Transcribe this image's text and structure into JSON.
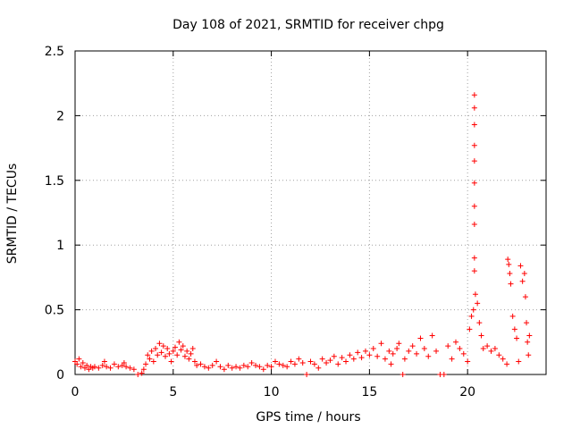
{
  "chart_data": {
    "type": "scatter",
    "title": "Day 108 of 2021, SRMTID for receiver chpg",
    "xlabel": "GPS time / hours",
    "ylabel": "SRMTID / TECUs",
    "xlim": [
      0,
      24
    ],
    "ylim": [
      0,
      2.5
    ],
    "xticks": [
      0,
      5,
      10,
      15,
      20
    ],
    "yticks": [
      0,
      0.5,
      1,
      1.5,
      2,
      2.5
    ],
    "xtick_labels": [
      "0",
      "5",
      "10",
      "15",
      "20"
    ],
    "ytick_labels": [
      "0",
      "0.5",
      "1",
      "1.5",
      "2",
      "2.5"
    ],
    "grid": true,
    "marker": "+",
    "series": [
      {
        "name": "SRMTID chpg",
        "color": "#ff0000",
        "points": [
          [
            0.0,
            0.1
          ],
          [
            0.1,
            0.08
          ],
          [
            0.2,
            0.12
          ],
          [
            0.3,
            0.06
          ],
          [
            0.4,
            0.09
          ],
          [
            0.5,
            0.05
          ],
          [
            0.6,
            0.07
          ],
          [
            0.7,
            0.04
          ],
          [
            0.8,
            0.06
          ],
          [
            0.9,
            0.05
          ],
          [
            1.0,
            0.06
          ],
          [
            1.2,
            0.05
          ],
          [
            1.4,
            0.07
          ],
          [
            1.5,
            0.1
          ],
          [
            1.6,
            0.06
          ],
          [
            1.8,
            0.05
          ],
          [
            2.0,
            0.08
          ],
          [
            2.2,
            0.06
          ],
          [
            2.4,
            0.07
          ],
          [
            2.5,
            0.09
          ],
          [
            2.6,
            0.06
          ],
          [
            2.8,
            0.05
          ],
          [
            3.0,
            0.04
          ],
          [
            3.2,
            0.0
          ],
          [
            3.4,
            0.01
          ],
          [
            3.5,
            0.04
          ],
          [
            3.6,
            0.08
          ],
          [
            3.7,
            0.15
          ],
          [
            3.8,
            0.12
          ],
          [
            3.9,
            0.18
          ],
          [
            4.0,
            0.1
          ],
          [
            4.1,
            0.2
          ],
          [
            4.2,
            0.15
          ],
          [
            4.3,
            0.24
          ],
          [
            4.4,
            0.17
          ],
          [
            4.5,
            0.22
          ],
          [
            4.6,
            0.14
          ],
          [
            4.7,
            0.2
          ],
          [
            4.8,
            0.16
          ],
          [
            4.9,
            0.1
          ],
          [
            5.0,
            0.18
          ],
          [
            5.1,
            0.21
          ],
          [
            5.2,
            0.15
          ],
          [
            5.3,
            0.25
          ],
          [
            5.4,
            0.19
          ],
          [
            5.5,
            0.22
          ],
          [
            5.6,
            0.14
          ],
          [
            5.7,
            0.18
          ],
          [
            5.8,
            0.12
          ],
          [
            5.9,
            0.16
          ],
          [
            6.0,
            0.2
          ],
          [
            6.1,
            0.1
          ],
          [
            6.2,
            0.07
          ],
          [
            6.4,
            0.08
          ],
          [
            6.6,
            0.06
          ],
          [
            6.8,
            0.05
          ],
          [
            7.0,
            0.07
          ],
          [
            7.2,
            0.1
          ],
          [
            7.4,
            0.06
          ],
          [
            7.6,
            0.04
          ],
          [
            7.8,
            0.07
          ],
          [
            8.0,
            0.05
          ],
          [
            8.2,
            0.06
          ],
          [
            8.4,
            0.05
          ],
          [
            8.6,
            0.07
          ],
          [
            8.8,
            0.06
          ],
          [
            9.0,
            0.09
          ],
          [
            9.2,
            0.07
          ],
          [
            9.4,
            0.06
          ],
          [
            9.6,
            0.04
          ],
          [
            9.8,
            0.07
          ],
          [
            10.0,
            0.06
          ],
          [
            10.2,
            0.1
          ],
          [
            10.4,
            0.08
          ],
          [
            10.6,
            0.07
          ],
          [
            10.8,
            0.06
          ],
          [
            11.0,
            0.1
          ],
          [
            11.2,
            0.08
          ],
          [
            11.4,
            0.12
          ],
          [
            11.6,
            0.09
          ],
          [
            11.8,
            0.0
          ],
          [
            12.0,
            0.1
          ],
          [
            12.2,
            0.08
          ],
          [
            12.4,
            0.05
          ],
          [
            12.6,
            0.12
          ],
          [
            12.8,
            0.09
          ],
          [
            13.0,
            0.11
          ],
          [
            13.2,
            0.14
          ],
          [
            13.4,
            0.08
          ],
          [
            13.6,
            0.13
          ],
          [
            13.8,
            0.1
          ],
          [
            14.0,
            0.15
          ],
          [
            14.2,
            0.12
          ],
          [
            14.4,
            0.17
          ],
          [
            14.6,
            0.13
          ],
          [
            14.8,
            0.18
          ],
          [
            15.0,
            0.15
          ],
          [
            15.2,
            0.2
          ],
          [
            15.4,
            0.14
          ],
          [
            15.6,
            0.24
          ],
          [
            15.8,
            0.12
          ],
          [
            16.0,
            0.18
          ],
          [
            16.1,
            0.08
          ],
          [
            16.2,
            0.16
          ],
          [
            16.4,
            0.2
          ],
          [
            16.5,
            0.24
          ],
          [
            16.7,
            0.0
          ],
          [
            16.8,
            0.12
          ],
          [
            17.0,
            0.18
          ],
          [
            17.2,
            0.22
          ],
          [
            17.4,
            0.16
          ],
          [
            17.6,
            0.28
          ],
          [
            17.8,
            0.2
          ],
          [
            18.0,
            0.14
          ],
          [
            18.2,
            0.3
          ],
          [
            18.4,
            0.18
          ],
          [
            18.6,
            0.0
          ],
          [
            18.8,
            0.0
          ],
          [
            19.0,
            0.22
          ],
          [
            19.2,
            0.12
          ],
          [
            19.4,
            0.25
          ],
          [
            19.6,
            0.2
          ],
          [
            19.8,
            0.16
          ],
          [
            20.0,
            0.1
          ],
          [
            20.1,
            0.35
          ],
          [
            20.2,
            0.45
          ],
          [
            20.3,
            0.5
          ],
          [
            20.35,
            0.8
          ],
          [
            20.35,
            0.9
          ],
          [
            20.35,
            1.16
          ],
          [
            20.35,
            1.3
          ],
          [
            20.35,
            1.48
          ],
          [
            20.35,
            1.65
          ],
          [
            20.35,
            1.77
          ],
          [
            20.35,
            1.93
          ],
          [
            20.35,
            2.06
          ],
          [
            20.35,
            2.16
          ],
          [
            20.4,
            0.62
          ],
          [
            20.5,
            0.55
          ],
          [
            20.6,
            0.4
          ],
          [
            20.7,
            0.3
          ],
          [
            20.8,
            0.2
          ],
          [
            21.0,
            0.22
          ],
          [
            21.2,
            0.18
          ],
          [
            21.4,
            0.2
          ],
          [
            21.6,
            0.15
          ],
          [
            21.8,
            0.12
          ],
          [
            22.0,
            0.08
          ],
          [
            22.05,
            0.89
          ],
          [
            22.1,
            0.85
          ],
          [
            22.15,
            0.78
          ],
          [
            22.2,
            0.7
          ],
          [
            22.3,
            0.45
          ],
          [
            22.4,
            0.35
          ],
          [
            22.5,
            0.28
          ],
          [
            22.6,
            0.1
          ],
          [
            22.7,
            0.84
          ],
          [
            22.8,
            0.72
          ],
          [
            22.9,
            0.78
          ],
          [
            22.95,
            0.6
          ],
          [
            23.0,
            0.4
          ],
          [
            23.05,
            0.25
          ],
          [
            23.1,
            0.15
          ],
          [
            23.15,
            0.3
          ]
        ]
      }
    ]
  }
}
